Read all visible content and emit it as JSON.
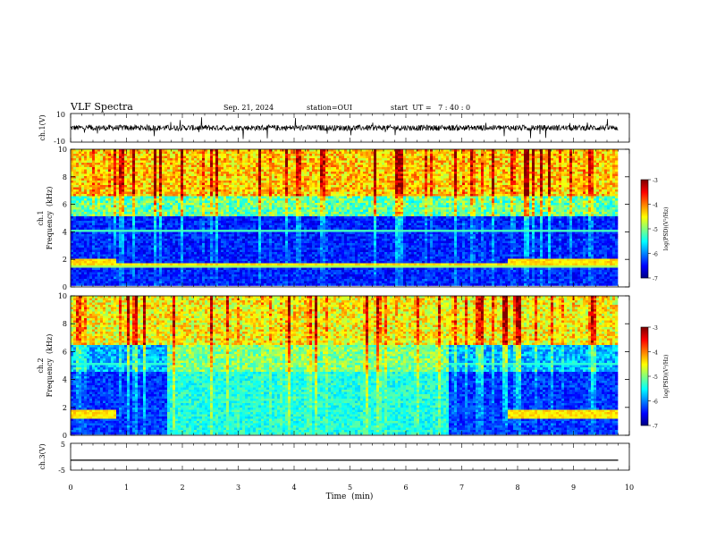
{
  "header": {
    "title": "VLF Spectra",
    "date": "Sep. 21, 2024",
    "station": "station=OUI",
    "start": "start  UT =   7 : 40 : 0"
  },
  "chart_data": [
    {
      "type": "line",
      "name": "ch.1 waveform",
      "ylabel": "ch.1(V)",
      "ylim": [
        -10,
        10
      ],
      "yticklabels": [
        "10",
        "-10"
      ],
      "xlim": [
        0,
        10
      ],
      "description_values": {
        "baseline": 0,
        "noise_amplitude": 2,
        "spike_amplitude": 8
      }
    },
    {
      "type": "heatmap",
      "name": "ch.1 spectrogram",
      "ylabel": "ch.1\nFrequency (kHz)",
      "ylabel_lines": [
        "ch.1",
        "Frequency  (kHz)"
      ],
      "ylim": [
        0,
        10
      ],
      "yticks": [
        0,
        2,
        4,
        6,
        8,
        10
      ],
      "xlim": [
        0,
        10
      ],
      "colorbar": {
        "label": "log(PSD)(V²/Hz)",
        "range": [
          -7,
          -3
        ],
        "ticks": [
          -3,
          -4,
          -5,
          -6,
          -7
        ],
        "ticklabels": [
          "-3",
          "-4",
          "-5",
          "-6",
          "-7"
        ]
      },
      "segments": [
        {
          "t": [
            0.0,
            0.8
          ],
          "band_khz": [
            1.4,
            1.9
          ],
          "level": -4.5
        },
        {
          "t": [
            0.8,
            7.8
          ],
          "band_khz": [
            1.4,
            1.6
          ],
          "level": -5.0
        },
        {
          "t": [
            7.8,
            9.8
          ],
          "band_khz": [
            1.4,
            1.9
          ],
          "level": -4.5
        }
      ],
      "background_low_khz_level": -6.5,
      "background_high_khz_level": -4.0
    },
    {
      "type": "heatmap",
      "name": "ch.2 spectrogram",
      "ylabel_lines": [
        "ch.2",
        "Frequency  (kHz)"
      ],
      "ylim": [
        0,
        10
      ],
      "yticks": [
        0,
        2,
        4,
        6,
        8,
        10
      ],
      "xlim": [
        0,
        10
      ],
      "colorbar": {
        "label": "log(PSD)(V²/Hz)",
        "range": [
          -7,
          -3
        ],
        "ticks": [
          -3,
          -4,
          -5,
          -6,
          -7
        ],
        "ticklabels": [
          "-3",
          "-4",
          "-5",
          "-6",
          "-7"
        ]
      },
      "elevated_interval_min": [
        1.7,
        6.75
      ],
      "band_segments": [
        {
          "t": [
            0.0,
            0.8
          ],
          "band_khz": [
            1.2,
            1.7
          ]
        },
        {
          "t": [
            7.8,
            9.8
          ],
          "band_khz": [
            1.2,
            1.7
          ]
        }
      ]
    },
    {
      "type": "line",
      "name": "ch.3 waveform",
      "ylabel": "ch.3(V)",
      "ylim": [
        -5,
        5
      ],
      "yticklabels": [
        "5",
        "-5"
      ],
      "xlim": [
        0,
        10
      ],
      "values_constant": -1.3
    }
  ],
  "xaxis": {
    "label": "Time  (min)",
    "ticks": [
      0,
      1,
      2,
      3,
      4,
      5,
      6,
      7,
      8,
      9,
      10
    ],
    "ticklabels": [
      "0",
      "1",
      "2",
      "3",
      "4",
      "5",
      "6",
      "7",
      "8",
      "9",
      "10"
    ],
    "data_end_min": 9.8
  }
}
